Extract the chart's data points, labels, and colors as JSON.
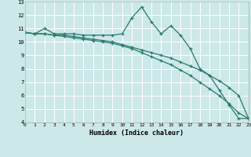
{
  "xlabel": "Humidex (Indice chaleur)",
  "bg_color": "#cce8e8",
  "grid_color": "#ffffff",
  "line_color": "#2a7a6e",
  "xlim": [
    0,
    23
  ],
  "ylim": [
    4,
    13
  ],
  "yticks": [
    4,
    5,
    6,
    7,
    8,
    9,
    10,
    11,
    12,
    13
  ],
  "xticks": [
    0,
    1,
    2,
    3,
    4,
    5,
    6,
    7,
    8,
    9,
    10,
    11,
    12,
    13,
    14,
    15,
    16,
    17,
    18,
    19,
    20,
    21,
    22,
    23
  ],
  "series": [
    [
      10.7,
      10.6,
      11.0,
      10.6,
      10.6,
      10.6,
      10.5,
      10.5,
      10.5,
      10.5,
      10.6,
      11.8,
      12.6,
      11.5,
      10.6,
      11.2,
      10.5,
      9.5,
      8.0,
      7.5,
      6.4,
      5.3,
      4.3,
      4.3
    ],
    [
      10.7,
      10.6,
      10.6,
      10.5,
      10.5,
      10.4,
      10.3,
      10.2,
      10.1,
      10.0,
      9.8,
      9.6,
      9.4,
      9.2,
      9.0,
      8.8,
      8.5,
      8.2,
      7.9,
      7.5,
      7.1,
      6.6,
      6.0,
      4.3
    ],
    [
      10.7,
      10.6,
      10.6,
      10.5,
      10.4,
      10.3,
      10.2,
      10.1,
      10.0,
      9.9,
      9.7,
      9.5,
      9.2,
      8.9,
      8.6,
      8.3,
      7.9,
      7.5,
      7.0,
      6.5,
      6.0,
      5.4,
      4.7,
      4.3
    ]
  ]
}
